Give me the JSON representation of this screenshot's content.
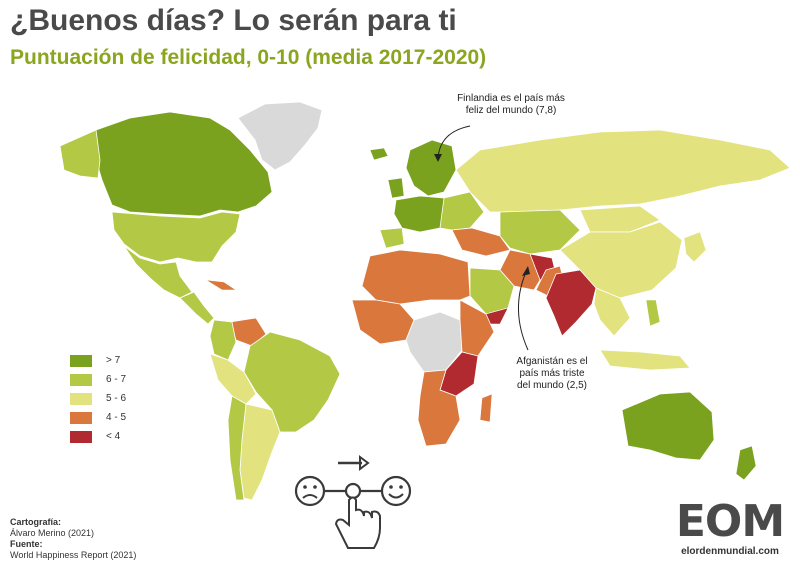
{
  "header": {
    "title": "¿Buenos días? Lo serán para ti",
    "subtitle": "Puntuación de felicidad, 0-10 (media 2017-2020)"
  },
  "legend": {
    "items": [
      {
        "label": "> 7",
        "color": "#7aa21e"
      },
      {
        "label": "6 - 7",
        "color": "#b3c844"
      },
      {
        "label": "5 - 6",
        "color": "#e2e27e"
      },
      {
        "label": "4 - 5",
        "color": "#d9773c"
      },
      {
        "label": "< 4",
        "color": "#b02a2f"
      }
    ],
    "no_data_color": "#d9d9d9"
  },
  "annotations": {
    "finland": {
      "line1": "Finlandia es el país más",
      "line2": "feliz del mundo (7,8)"
    },
    "afghanistan": {
      "line1": "Afganistán es el",
      "line2": "país más triste",
      "line3": "del mundo (2,5)"
    }
  },
  "credits": {
    "cartography_label": "Cartografía:",
    "cartography_value": "Álvaro Merino (2021)",
    "source_label": "Fuente:",
    "source_value": "World Happiness Report (2021)"
  },
  "logo": {
    "text": "EOM",
    "url": "elordenmundial.com"
  },
  "icons": [
    "sad-face-icon",
    "happy-face-icon",
    "arrow-right-icon",
    "pointing-hand-icon"
  ]
}
